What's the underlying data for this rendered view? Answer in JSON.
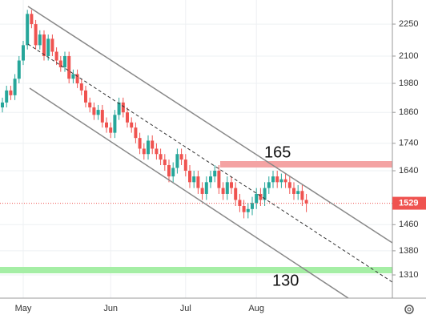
{
  "chart_data": {
    "type": "candlestick",
    "categories": [
      null,
      null,
      null,
      null,
      null,
      "May",
      null,
      null,
      null,
      null,
      null,
      null,
      null,
      null,
      null,
      null,
      null,
      null,
      null,
      null,
      null,
      null,
      null,
      null,
      null,
      null,
      "Jun",
      null,
      null,
      null,
      null,
      null,
      null,
      null,
      null,
      null,
      null,
      null,
      null,
      null,
      null,
      null,
      null,
      null,
      "Jul",
      null,
      null,
      null,
      null,
      null,
      null,
      null,
      null,
      null,
      null,
      null,
      null,
      null,
      null,
      null,
      null,
      "Aug",
      null,
      null,
      null,
      null,
      null,
      null,
      null,
      null,
      null,
      null,
      null,
      null
    ],
    "open": [
      1880,
      1900,
      1950,
      1930,
      2000,
      2080,
      2150,
      2300,
      2250,
      2150,
      2200,
      2100,
      2180,
      2120,
      2080,
      2050,
      2100,
      2000,
      2020,
      1980,
      1950,
      1900,
      1880,
      1850,
      1870,
      1820,
      1800,
      1780,
      1850,
      1900,
      1860,
      1820,
      1800,
      1760,
      1720,
      1700,
      1750,
      1720,
      1700,
      1680,
      1660,
      1620,
      1650,
      1700,
      1680,
      1640,
      1600,
      1620,
      1580,
      1560,
      1600,
      1620,
      1640,
      1580,
      1560,
      1600,
      1580,
      1540,
      1520,
      1500,
      1510,
      1530,
      1560,
      1540,
      1580,
      1600,
      1620,
      1600,
      1610,
      1600,
      1580,
      1560,
      1570,
      1540
    ],
    "high": [
      1920,
      1970,
      1970,
      2020,
      2100,
      2170,
      2320,
      2320,
      2270,
      2220,
      2220,
      2200,
      2200,
      2140,
      2100,
      2120,
      2120,
      2040,
      2040,
      2000,
      1970,
      1920,
      1900,
      1890,
      1890,
      1840,
      1820,
      1870,
      1920,
      1920,
      1880,
      1840,
      1820,
      1780,
      1740,
      1770,
      1770,
      1740,
      1720,
      1700,
      1680,
      1670,
      1720,
      1720,
      1700,
      1660,
      1640,
      1640,
      1600,
      1620,
      1640,
      1660,
      1660,
      1600,
      1620,
      1620,
      1600,
      1560,
      1540,
      1530,
      1550,
      1580,
      1580,
      1600,
      1620,
      1640,
      1640,
      1630,
      1630,
      1620,
      1600,
      1590,
      1590,
      1560
    ],
    "low": [
      1860,
      1880,
      1910,
      1910,
      1980,
      2060,
      2130,
      2230,
      2130,
      2130,
      2080,
      2080,
      2100,
      2060,
      2030,
      2030,
      1980,
      1980,
      1960,
      1930,
      1880,
      1860,
      1830,
      1830,
      1800,
      1780,
      1760,
      1760,
      1830,
      1840,
      1800,
      1780,
      1740,
      1700,
      1680,
      1680,
      1700,
      1680,
      1660,
      1640,
      1600,
      1600,
      1630,
      1660,
      1620,
      1580,
      1580,
      1560,
      1540,
      1540,
      1580,
      1600,
      1560,
      1540,
      1540,
      1560,
      1520,
      1500,
      1480,
      1480,
      1490,
      1510,
      1520,
      1520,
      1560,
      1580,
      1580,
      1580,
      1580,
      1560,
      1540,
      1540,
      1520,
      1500
    ],
    "close": [
      1900,
      1950,
      1930,
      2000,
      2080,
      2150,
      2300,
      2250,
      2150,
      2200,
      2100,
      2180,
      2120,
      2080,
      2050,
      2100,
      2000,
      2020,
      1980,
      1950,
      1900,
      1880,
      1850,
      1870,
      1820,
      1800,
      1780,
      1850,
      1900,
      1860,
      1820,
      1800,
      1760,
      1720,
      1700,
      1750,
      1720,
      1700,
      1680,
      1660,
      1620,
      1650,
      1700,
      1680,
      1640,
      1600,
      1620,
      1580,
      1560,
      1600,
      1620,
      1640,
      1580,
      1560,
      1600,
      1580,
      1540,
      1520,
      1500,
      1510,
      1530,
      1560,
      1540,
      1580,
      1600,
      1620,
      1600,
      1610,
      1600,
      1580,
      1560,
      1570,
      1540,
      1529
    ],
    "up_color": "#26a69a",
    "down_color": "#ef5350",
    "ylim": [
      1246,
      2370
    ],
    "log_scale": true,
    "yticks": [
      2250,
      2100,
      1980,
      1860,
      1740,
      1640,
      1460,
      1380,
      1310
    ],
    "last_price": 1529,
    "annotations": [
      "165",
      "130"
    ]
  }
}
